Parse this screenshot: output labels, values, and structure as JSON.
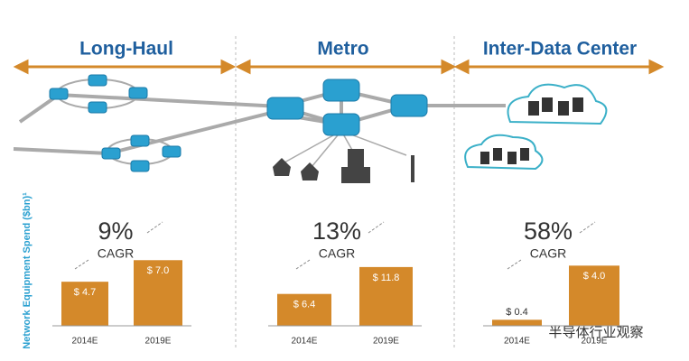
{
  "y_axis_label": "Network Equipment Spend ($bn)¹",
  "watermark": "半导体行业观察",
  "chart_data": [
    {
      "type": "bar",
      "title": "Long-Haul",
      "cagr": "9%",
      "cagr_label": "CAGR",
      "categories": [
        "2014E",
        "2019E"
      ],
      "values": [
        4.7,
        7.0
      ],
      "value_labels": [
        "$ 4.7",
        "$ 7.0"
      ],
      "color": "#d4892a",
      "ylim": [
        0,
        7.7
      ]
    },
    {
      "type": "bar",
      "title": "Metro",
      "cagr": "13%",
      "cagr_label": "CAGR",
      "categories": [
        "2014E",
        "2019E"
      ],
      "values": [
        6.4,
        11.8
      ],
      "value_labels": [
        "$ 6.4",
        "$ 11.8"
      ],
      "color": "#d4892a",
      "ylim": [
        0,
        14.5
      ]
    },
    {
      "type": "bar",
      "title": "Inter-Data Center",
      "cagr": "58%",
      "cagr_label": "CAGR",
      "categories": [
        "2014E",
        "2019E"
      ],
      "values": [
        0.4,
        4.0
      ],
      "value_labels": [
        "$ 0.4",
        "$ 4.0"
      ],
      "color": "#d4892a",
      "ylim": [
        0,
        4.8
      ]
    }
  ]
}
